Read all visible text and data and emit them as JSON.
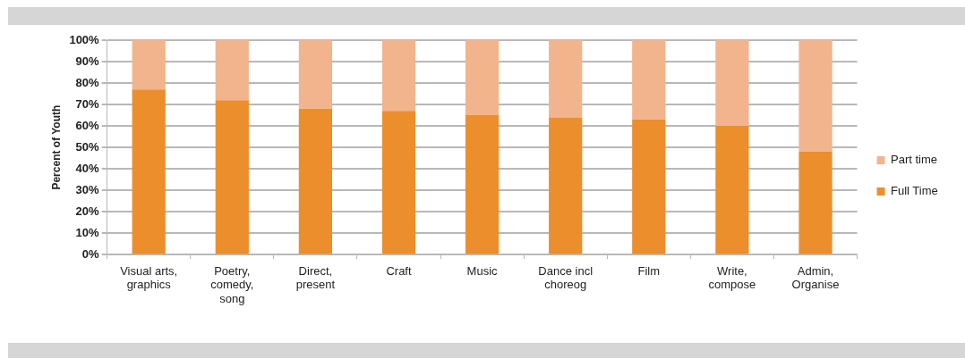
{
  "chart_data": {
    "type": "bar",
    "ylabel": "Percent of Youth",
    "categories": [
      "Visual arts, graphics",
      "Poetry, comedy, song",
      "Direct, present",
      "Craft",
      "Music",
      "Dance incl choreog",
      "Film",
      "Write, compose",
      "Admin, Organise"
    ],
    "series": [
      {
        "name": "Full Time",
        "color": "#ec8e2c",
        "values": [
          77,
          72,
          68,
          67,
          65,
          64,
          63,
          60,
          48
        ]
      },
      {
        "name": "Part time",
        "color": "#f2b48c",
        "values": [
          23,
          28,
          32,
          33,
          35,
          36,
          37,
          40,
          52
        ]
      }
    ],
    "stacked": true,
    "ylim": [
      0,
      100
    ],
    "yticks": [
      {
        "value": 0,
        "label": "0%"
      },
      {
        "value": 10,
        "label": "10%"
      },
      {
        "value": 20,
        "label": "20%"
      },
      {
        "value": 30,
        "label": "30%"
      },
      {
        "value": 40,
        "label": "40%"
      },
      {
        "value": 50,
        "label": "50%"
      },
      {
        "value": 60,
        "label": "60%"
      },
      {
        "value": 70,
        "label": "70%"
      },
      {
        "value": 80,
        "label": "80%"
      },
      {
        "value": 90,
        "label": "90%"
      },
      {
        "value": 100,
        "label": "100%"
      }
    ],
    "grid": "y",
    "legend": "right"
  }
}
